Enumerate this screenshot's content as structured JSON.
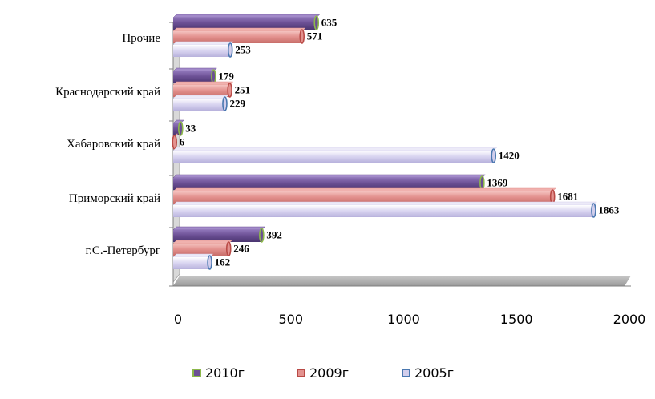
{
  "chart_data": {
    "type": "bar",
    "orientation": "horizontal",
    "categories": [
      "г.С.-Петербург",
      "Приморский край",
      "Хабаровский край",
      "Краснодарский край",
      "Прочие"
    ],
    "series": [
      {
        "name": "2010г",
        "values": [
          392,
          1369,
          33,
          179,
          635
        ],
        "color": "#6B4F94",
        "edge": "#8CB84A"
      },
      {
        "name": "2009г",
        "values": [
          246,
          1681,
          6,
          251,
          571
        ],
        "color": "#E3928F",
        "edge": "#B94A46"
      },
      {
        "name": "2005г",
        "values": [
          162,
          1863,
          1420,
          229,
          253
        ],
        "color": "#D2CEEC",
        "edge": "#4A78B0"
      }
    ],
    "xlim": [
      0,
      2000
    ],
    "xticks": [
      "0",
      "500",
      "1000",
      "1500",
      "2000"
    ],
    "legend_position": "bottom",
    "grid": false,
    "style": "3d"
  }
}
